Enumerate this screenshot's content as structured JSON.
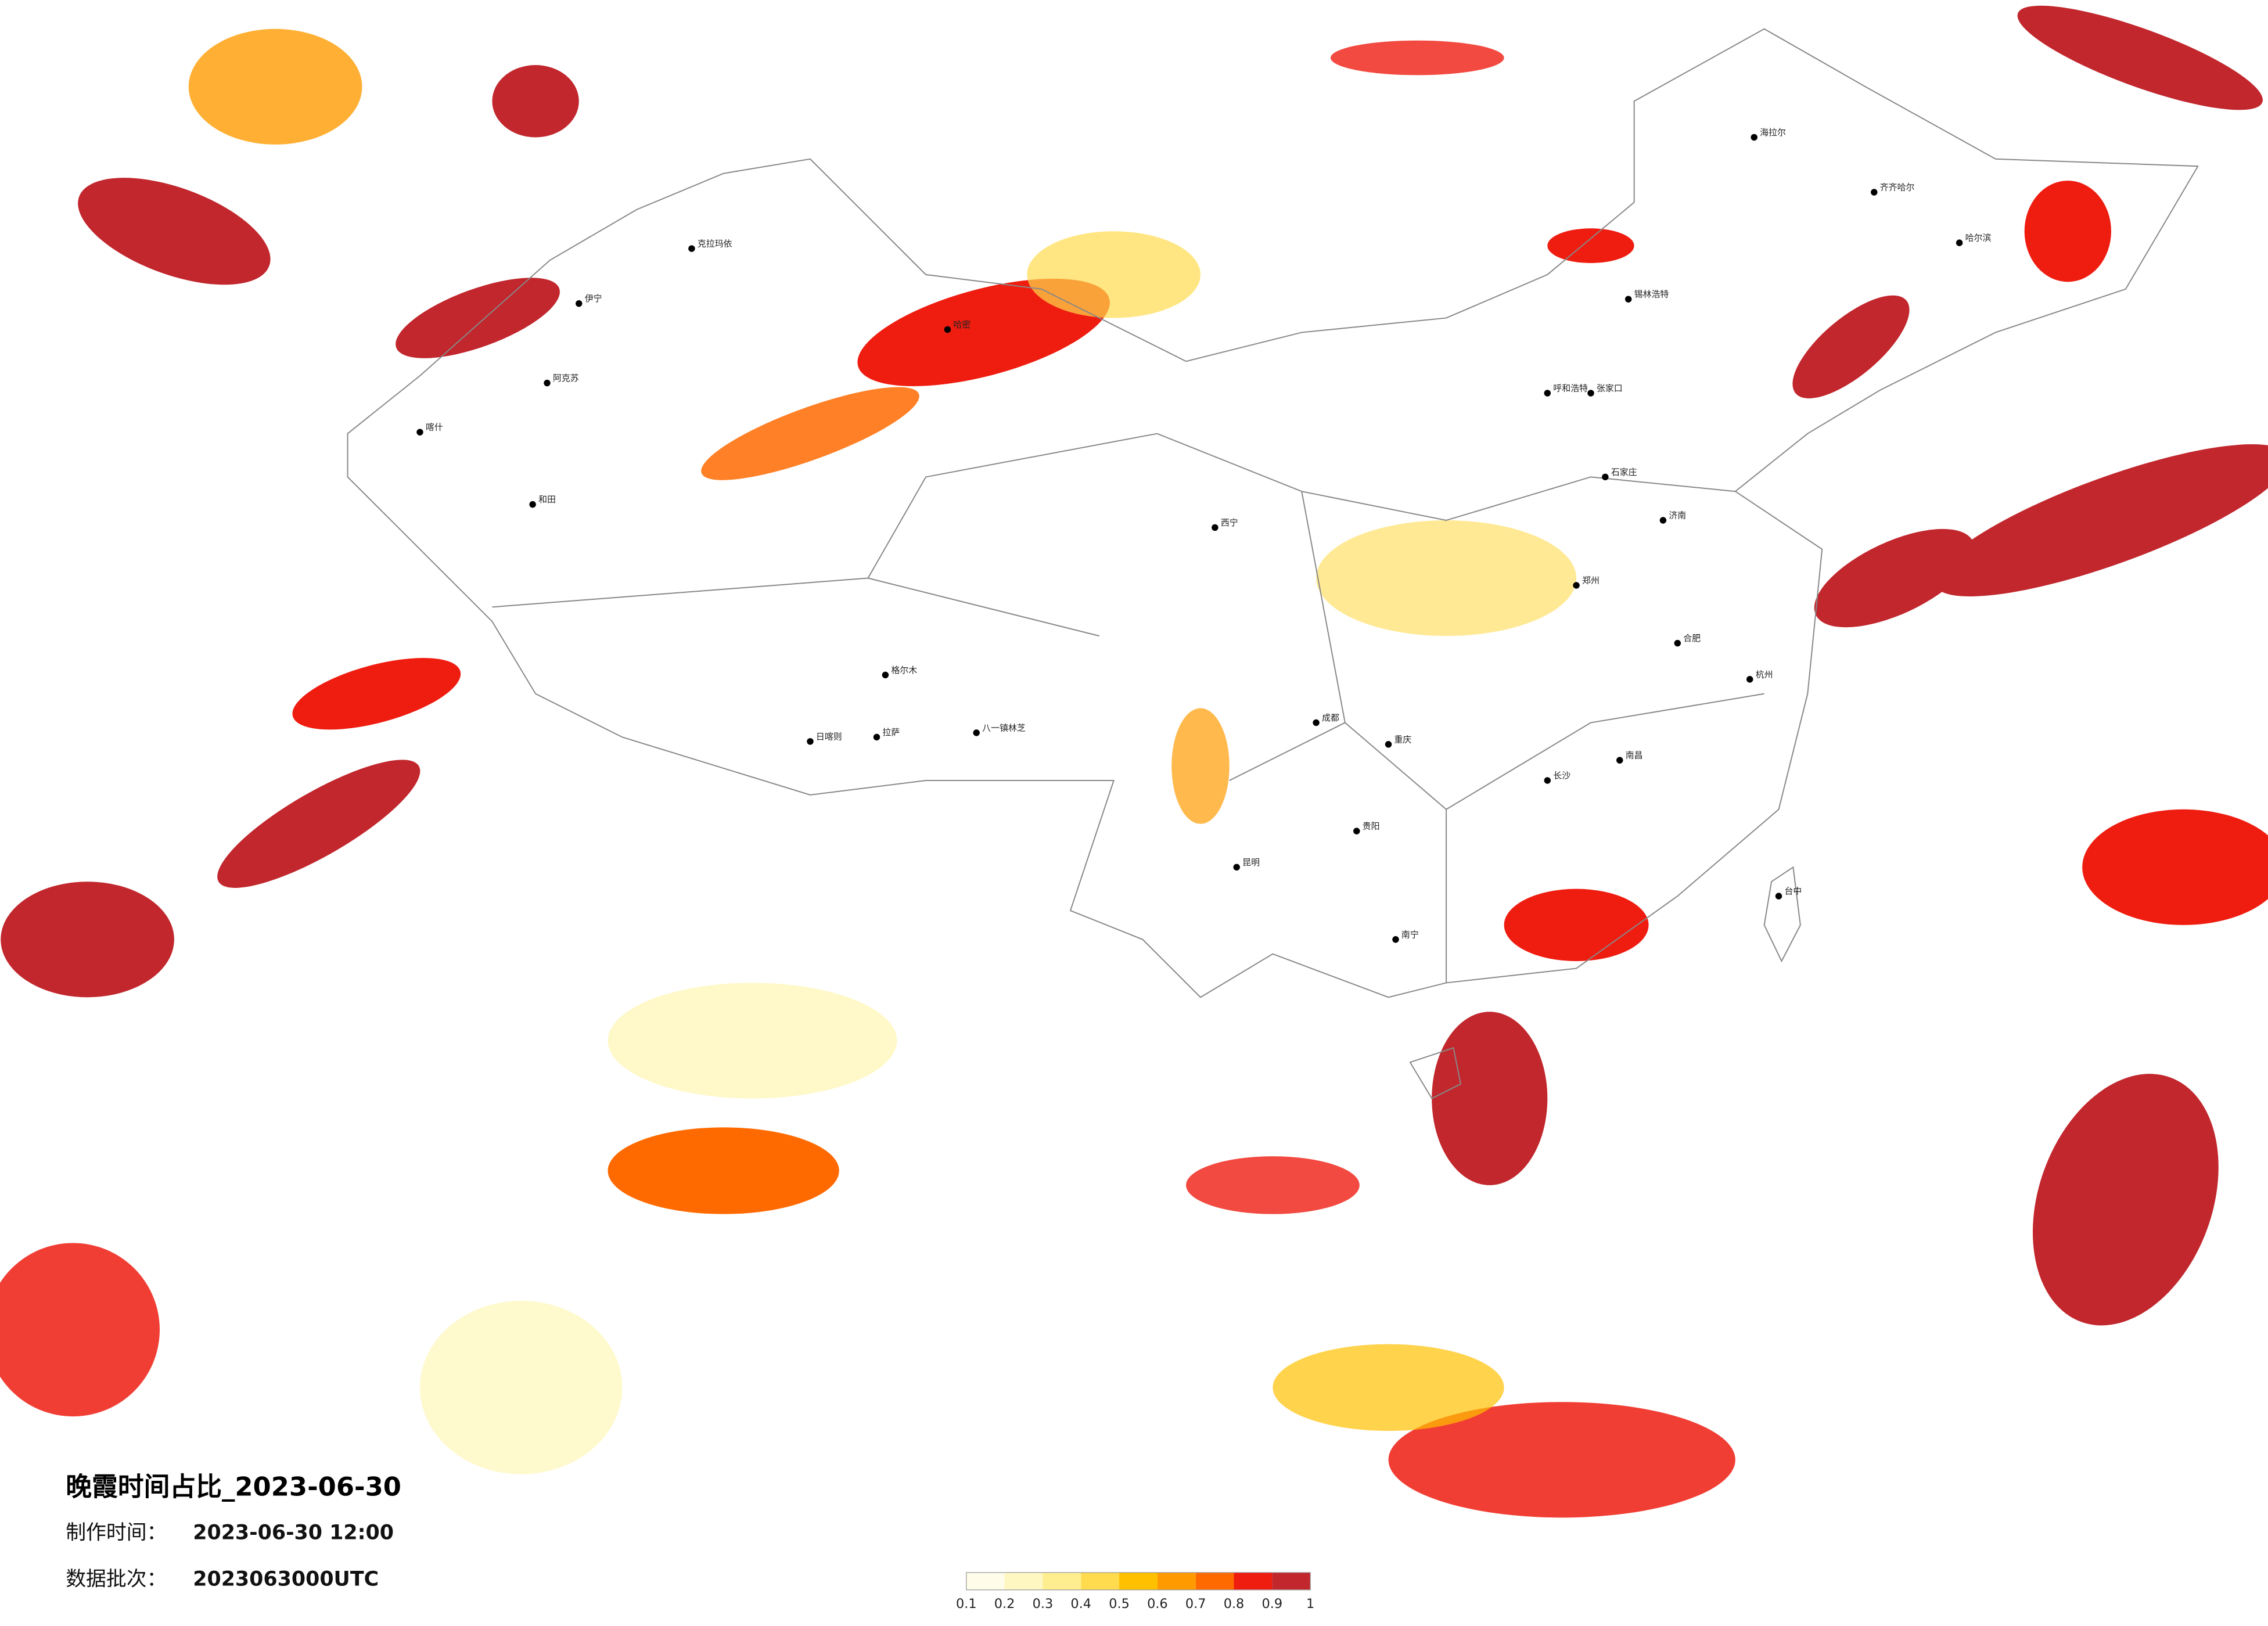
{
  "title": "晚霞时间占比_2023-06-30",
  "info": [
    {
      "label": "制作时间：",
      "value": "2023-06-30 12:00"
    },
    {
      "label": "数据批次：",
      "value": "2023063000UTC"
    }
  ],
  "colorbar": {
    "ticks": [
      0.1,
      0.2,
      0.3,
      0.4,
      0.5,
      0.6,
      0.7,
      0.8,
      0.9,
      1
    ],
    "colors": [
      "#fffde9",
      "#fff7c2",
      "#ffee8f",
      "#ffdb4d",
      "#ffc000",
      "#ff9b00",
      "#ff6a00",
      "#ef1c10",
      "#c1272d"
    ]
  },
  "cities": [
    "克拉玛依",
    "伊宁",
    "阿克苏",
    "喀什",
    "和田",
    "哈密",
    "格尔木",
    "拉萨",
    "日喀则",
    "八一镇林芝",
    "海拉尔",
    "齐齐哈尔",
    "哈尔滨",
    "锡林浩特",
    "呼和浩特",
    "张家口",
    "西宁",
    "南昌",
    "长沙",
    "南宁",
    "台中",
    "贵阳",
    "重庆",
    "成都",
    "昆明",
    "杭州",
    "合肥",
    "郑州",
    "济南",
    "石家庄"
  ]
}
